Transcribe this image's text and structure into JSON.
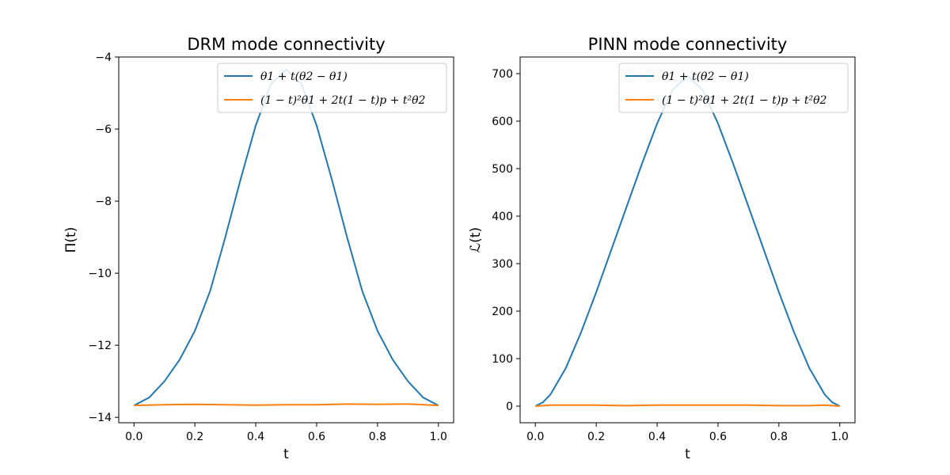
{
  "chart_data": [
    {
      "type": "line",
      "title": "DRM mode connectivity",
      "xlabel": "t",
      "ylabel": "Π(t)",
      "xlim": [
        -0.05,
        1.05
      ],
      "ylim": [
        -14.15,
        -4.0
      ],
      "xticks": [
        "0.0",
        "0.2",
        "0.4",
        "0.6",
        "0.8",
        "1.0"
      ],
      "yticks": [
        "−14",
        "−12",
        "−10",
        "−8",
        "−6",
        "−4"
      ],
      "grid": false,
      "legend_position": "upper right",
      "series": [
        {
          "name": "θ1 + t(θ2 − θ1)",
          "color": "#1f77b4",
          "x": [
            0.0,
            0.05,
            0.1,
            0.15,
            0.2,
            0.25,
            0.3,
            0.35,
            0.4,
            0.45,
            0.5,
            0.55,
            0.6,
            0.65,
            0.7,
            0.75,
            0.8,
            0.85,
            0.9,
            0.95,
            1.0
          ],
          "y": [
            -13.67,
            -13.45,
            -13.0,
            -12.4,
            -11.6,
            -10.5,
            -9.0,
            -7.4,
            -5.9,
            -4.75,
            -4.35,
            -4.75,
            -5.9,
            -7.4,
            -9.0,
            -10.5,
            -11.6,
            -12.4,
            -13.0,
            -13.45,
            -13.67
          ]
        },
        {
          "name": "(1 − t)²θ1 + 2t(1 − t)p + t²θ2",
          "color": "#ff7f0e",
          "x": [
            0.0,
            0.1,
            0.2,
            0.3,
            0.4,
            0.5,
            0.6,
            0.7,
            0.8,
            0.9,
            1.0
          ],
          "y": [
            -13.67,
            -13.65,
            -13.64,
            -13.65,
            -13.66,
            -13.65,
            -13.65,
            -13.63,
            -13.64,
            -13.63,
            -13.67
          ]
        }
      ]
    },
    {
      "type": "line",
      "title": "PINN mode connectivity",
      "xlabel": "t",
      "ylabel": "ℒ(t)",
      "xlim": [
        -0.05,
        1.05
      ],
      "ylim": [
        -35,
        735
      ],
      "xticks": [
        "0.0",
        "0.2",
        "0.4",
        "0.6",
        "0.8",
        "1.0"
      ],
      "yticks": [
        "0",
        "100",
        "200",
        "300",
        "400",
        "500",
        "600",
        "700"
      ],
      "grid": false,
      "legend_position": "upper right",
      "series": [
        {
          "name": "θ1 + t(θ2 − θ1)",
          "color": "#1f77b4",
          "x": [
            0.0,
            0.025,
            0.05,
            0.1,
            0.15,
            0.2,
            0.25,
            0.3,
            0.35,
            0.4,
            0.45,
            0.5,
            0.55,
            0.6,
            0.65,
            0.7,
            0.75,
            0.8,
            0.85,
            0.9,
            0.95,
            0.975,
            1.0
          ],
          "y": [
            0,
            8,
            25,
            80,
            155,
            240,
            330,
            420,
            510,
            595,
            665,
            695,
            665,
            595,
            510,
            420,
            330,
            240,
            155,
            80,
            25,
            8,
            0
          ]
        },
        {
          "name": "(1 − t)²θ1 + 2t(1 − t)p + t²θ2",
          "color": "#ff7f0e",
          "x": [
            0.0,
            0.05,
            0.1,
            0.2,
            0.3,
            0.4,
            0.5,
            0.6,
            0.7,
            0.8,
            0.9,
            0.95,
            1.0
          ],
          "y": [
            0,
            2,
            2,
            2,
            1,
            2,
            2,
            2,
            2,
            1,
            1,
            2,
            0
          ]
        }
      ]
    }
  ]
}
